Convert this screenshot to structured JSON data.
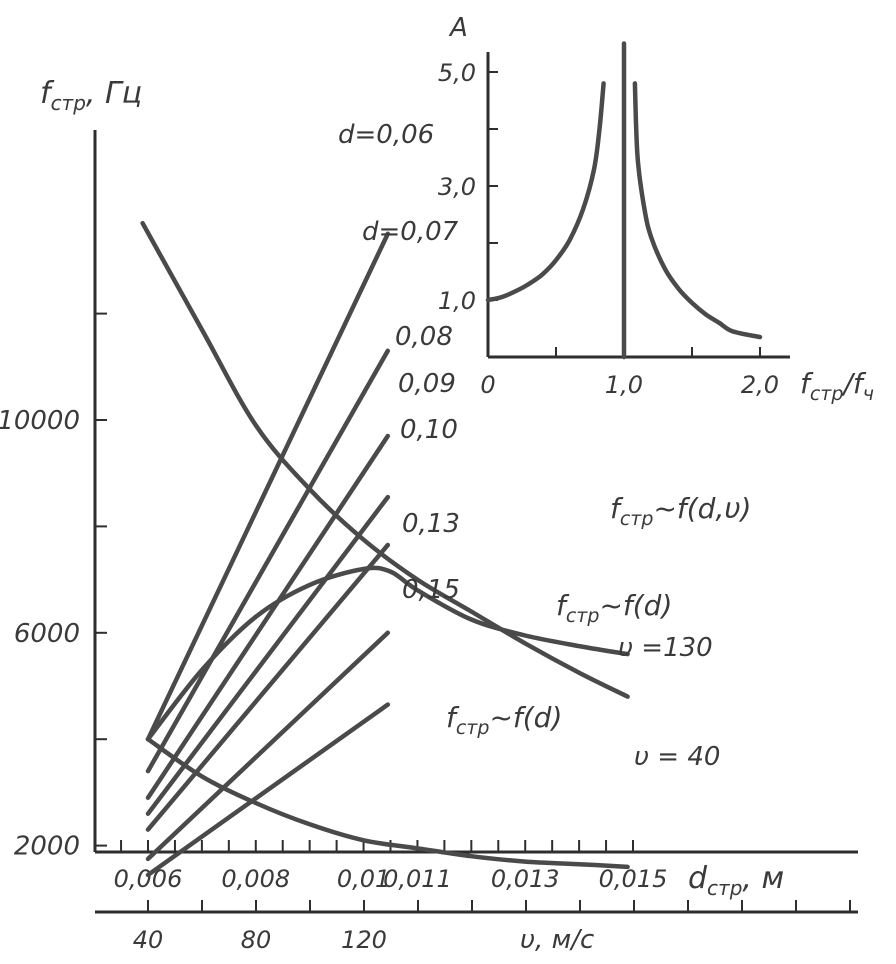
{
  "chart_data": [
    {
      "type": "line",
      "title": "",
      "ylabel": "f",
      "ylabel_sub": "стр",
      "ylabel_unit": ", Гц",
      "xlabel": "d",
      "xlabel_sub": "стр",
      "xlabel_unit": ", м",
      "x2label": "υ, м/с",
      "ylim": [
        0,
        14000
      ],
      "y_ticks": [
        2000,
        6000,
        10000
      ],
      "x_ticks": [
        {
          "value": 0.006,
          "label": "0,006"
        },
        {
          "value": 0.008,
          "label": "0,008"
        },
        {
          "value": 0.01,
          "label": "0,01"
        },
        {
          "value": 0.011,
          "label": "0,011"
        },
        {
          "value": 0.013,
          "label": "0,013"
        },
        {
          "value": 0.015,
          "label": "0,015"
        }
      ],
      "x2_ticks": [
        {
          "value": 40,
          "label": "40"
        },
        {
          "value": 80,
          "label": "80"
        },
        {
          "value": 120,
          "label": "120"
        }
      ],
      "series": [
        {
          "name": "d=0,06",
          "x": [
            0.006,
            0.01045
          ],
          "y": [
            4000,
            13500
          ]
        },
        {
          "name": "d=0,07",
          "x": [
            0.006,
            0.01045
          ],
          "y": [
            3400,
            11300
          ]
        },
        {
          "name": "0,08",
          "x": [
            0.006,
            0.01045
          ],
          "y": [
            2900,
            9700
          ]
        },
        {
          "name": "0,09",
          "x": [
            0.006,
            0.01045
          ],
          "y": [
            2600,
            8550
          ]
        },
        {
          "name": "0,10",
          "x": [
            0.006,
            0.01045
          ],
          "y": [
            2300,
            7650
          ]
        },
        {
          "name": "0,13",
          "x": [
            0.006,
            0.01045
          ],
          "y": [
            1750,
            6000
          ]
        },
        {
          "name": "0,15",
          "x": [
            0.006,
            0.01045
          ],
          "y": [
            1450,
            4650
          ]
        },
        {
          "name": "fстр~f(d), υ=130",
          "x": [
            0.0059,
            0.007,
            0.008,
            0.009,
            0.01,
            0.011,
            0.012,
            0.013,
            0.014,
            0.0149
          ],
          "y": [
            13700,
            11700,
            9900,
            8700,
            7750,
            7000,
            6400,
            5800,
            5250,
            4800
          ]
        },
        {
          "name": "fстр~f(d,υ)",
          "x": [
            0.006,
            0.007,
            0.008,
            0.009,
            0.01,
            0.0105,
            0.011,
            0.012,
            0.013,
            0.014,
            0.0149
          ],
          "y": [
            4000,
            5300,
            6300,
            6900,
            7200,
            7150,
            6800,
            6250,
            5950,
            5750,
            5600
          ]
        },
        {
          "name": "fстр~f(d), υ=40",
          "x": [
            0.006,
            0.007,
            0.008,
            0.009,
            0.01,
            0.011,
            0.012,
            0.013,
            0.014,
            0.0149
          ],
          "y": [
            4000,
            3300,
            2800,
            2400,
            2100,
            1950,
            1800,
            1700,
            1650,
            1600
          ]
        }
      ],
      "annotations": [
        {
          "text": "d=0,06"
        },
        {
          "text": "d=0,07"
        },
        {
          "text": "0,08"
        },
        {
          "text": "0,09"
        },
        {
          "text": "0,10"
        },
        {
          "text": "0,13"
        },
        {
          "text": "0,15"
        },
        {
          "text": "f",
          "sub": "стр",
          "rest": "~f(d,υ)"
        },
        {
          "text": "f",
          "sub": "стр",
          "rest": "~f(d)"
        },
        {
          "text": "υ =130"
        },
        {
          "text": "f",
          "sub": "стр",
          "rest": "~f(d)"
        },
        {
          "text": "υ = 40"
        }
      ]
    },
    {
      "type": "line",
      "title": "",
      "ylabel": "A",
      "xlabel": "f",
      "xlabel_sub": "стр",
      "xlabel_unit": "/f",
      "xlabel_sub2": "ч",
      "xlim": [
        0,
        2.0
      ],
      "ylim": [
        0,
        5.5
      ],
      "x_ticks": [
        {
          "value": 0,
          "label": "0"
        },
        {
          "value": 1.0,
          "label": "1,0"
        },
        {
          "value": 2.0,
          "label": "2,0"
        }
      ],
      "y_ticks": [
        {
          "value": 1.0,
          "label": "1,0"
        },
        {
          "value": 3.0,
          "label": "3,0"
        },
        {
          "value": 5.0,
          "label": "5,0"
        }
      ],
      "series": [
        {
          "name": "left branch",
          "x": [
            0.0,
            0.1,
            0.2,
            0.3,
            0.4,
            0.5,
            0.6,
            0.7,
            0.78,
            0.82,
            0.85
          ],
          "y": [
            1.0,
            1.05,
            1.15,
            1.28,
            1.45,
            1.7,
            2.05,
            2.6,
            3.3,
            4.0,
            4.8
          ]
        },
        {
          "name": "right branch",
          "x": [
            1.08,
            1.1,
            1.15,
            1.2,
            1.3,
            1.4,
            1.5,
            1.6,
            1.7,
            1.8,
            2.0
          ],
          "y": [
            4.8,
            3.5,
            2.6,
            2.1,
            1.55,
            1.2,
            0.95,
            0.75,
            0.6,
            0.45,
            0.35
          ]
        },
        {
          "name": "resonance line",
          "x": [
            1.0,
            1.0
          ],
          "y": [
            0,
            5.5
          ]
        }
      ]
    }
  ]
}
